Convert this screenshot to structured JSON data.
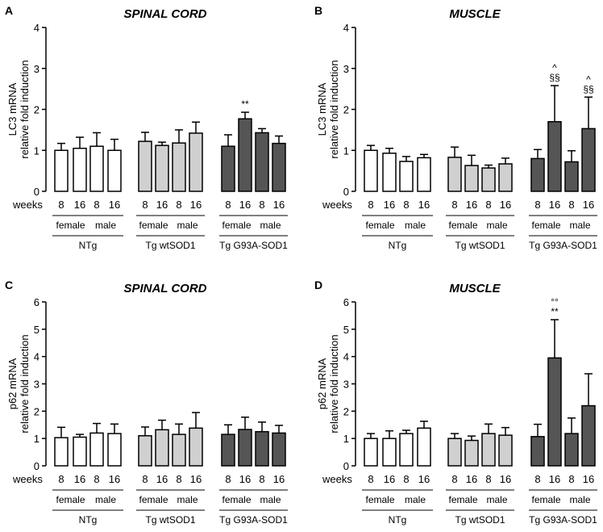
{
  "chart_data": [
    {
      "type": "bar",
      "panel": "A",
      "title": "SPINAL CORD",
      "ylabel_line1": "LC3 mRNA",
      "ylabel_line2": "relative fold induction",
      "ylim": [
        0,
        4
      ],
      "yticks": [
        "0",
        "1",
        "2",
        "3",
        "4"
      ],
      "values": [
        1.0,
        1.05,
        1.1,
        1.0,
        1.22,
        1.12,
        1.18,
        1.42,
        1.1,
        1.77,
        1.43,
        1.17
      ],
      "errors": [
        0.17,
        0.27,
        0.33,
        0.27,
        0.22,
        0.08,
        0.32,
        0.27,
        0.28,
        0.16,
        0.1,
        0.18
      ],
      "annotations": [
        {
          "bar": 9,
          "lines": [
            "**"
          ]
        }
      ]
    },
    {
      "type": "bar",
      "panel": "B",
      "title": "MUSCLE",
      "ylabel_line1": "LC3 mRNA",
      "ylabel_line2": "relative fold induction",
      "ylim": [
        0,
        4
      ],
      "yticks": [
        "0",
        "1",
        "2",
        "3",
        "4"
      ],
      "values": [
        1.0,
        0.93,
        0.73,
        0.82,
        0.83,
        0.63,
        0.57,
        0.67,
        0.8,
        1.7,
        0.72,
        1.53
      ],
      "errors": [
        0.12,
        0.12,
        0.12,
        0.08,
        0.25,
        0.25,
        0.07,
        0.14,
        0.22,
        0.88,
        0.27,
        0.77
      ],
      "annotations": [
        {
          "bar": 9,
          "lines": [
            "^",
            "§§"
          ]
        },
        {
          "bar": 11,
          "lines": [
            "^",
            "§§"
          ]
        }
      ]
    },
    {
      "type": "bar",
      "panel": "C",
      "title": "SPINAL CORD",
      "ylabel_line1": "p62 mRNA",
      "ylabel_line2": "relative fold induction",
      "ylim": [
        0,
        6
      ],
      "yticks": [
        "0",
        "1",
        "2",
        "3",
        "4",
        "5",
        "6"
      ],
      "values": [
        1.03,
        1.05,
        1.2,
        1.18,
        1.1,
        1.32,
        1.15,
        1.38,
        1.15,
        1.33,
        1.25,
        1.2
      ],
      "errors": [
        0.38,
        0.1,
        0.35,
        0.35,
        0.32,
        0.35,
        0.38,
        0.57,
        0.35,
        0.45,
        0.35,
        0.28
      ],
      "annotations": []
    },
    {
      "type": "bar",
      "panel": "D",
      "title": "MUSCLE",
      "ylabel_line1": "p62 mRNA",
      "ylabel_line2": "relative fold induction",
      "ylim": [
        0,
        6
      ],
      "yticks": [
        "0",
        "1",
        "2",
        "3",
        "4",
        "5",
        "6"
      ],
      "values": [
        1.0,
        1.0,
        1.18,
        1.38,
        1.0,
        0.93,
        1.18,
        1.12,
        1.07,
        3.95,
        1.18,
        2.2
      ],
      "errors": [
        0.18,
        0.28,
        0.12,
        0.25,
        0.18,
        0.16,
        0.35,
        0.28,
        0.45,
        1.4,
        0.57,
        1.17
      ],
      "annotations": [
        {
          "bar": 9,
          "lines": [
            "°°",
            "**"
          ]
        }
      ]
    }
  ],
  "x_axis": {
    "weeks_label": "weeks",
    "weeks": [
      "8",
      "16",
      "8",
      "16",
      "8",
      "16",
      "8",
      "16",
      "8",
      "16",
      "8",
      "16"
    ],
    "sex": [
      "female",
      "male",
      "female",
      "male",
      "female",
      "male"
    ],
    "genotypes": [
      "NTg",
      "Tg wtSOD1",
      "Tg G93A-SOD1"
    ]
  },
  "colors": {
    "NTg": "#ffffff",
    "Tg wtSOD1": "#d0d0d0",
    "Tg G93A-SOD1": "#555555",
    "stroke": "#000000"
  }
}
